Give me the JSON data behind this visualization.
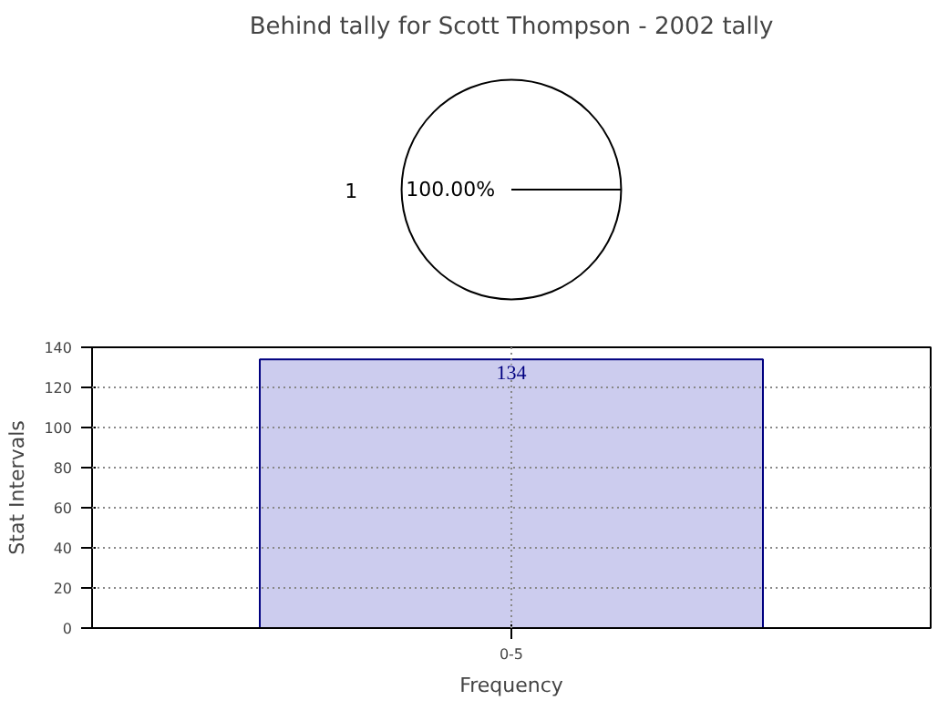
{
  "chart_data": [
    {
      "type": "pie",
      "title": "Behind tally for Scott Thompson - 2002 tally",
      "categories": [
        "1"
      ],
      "values": [
        100
      ],
      "colors": [
        "#ffffff"
      ],
      "value_labels": [
        "100.00%"
      ]
    },
    {
      "type": "bar",
      "categories": [
        "0-5"
      ],
      "values": [
        134
      ],
      "color": "#ccccee",
      "xlabel": "Frequency",
      "ylabel": "Stat Intervals",
      "ylim": [
        0,
        140
      ],
      "yticks": [
        0,
        20,
        40,
        60,
        80,
        100,
        120,
        140
      ],
      "grid": true,
      "data_labels": true
    }
  ]
}
